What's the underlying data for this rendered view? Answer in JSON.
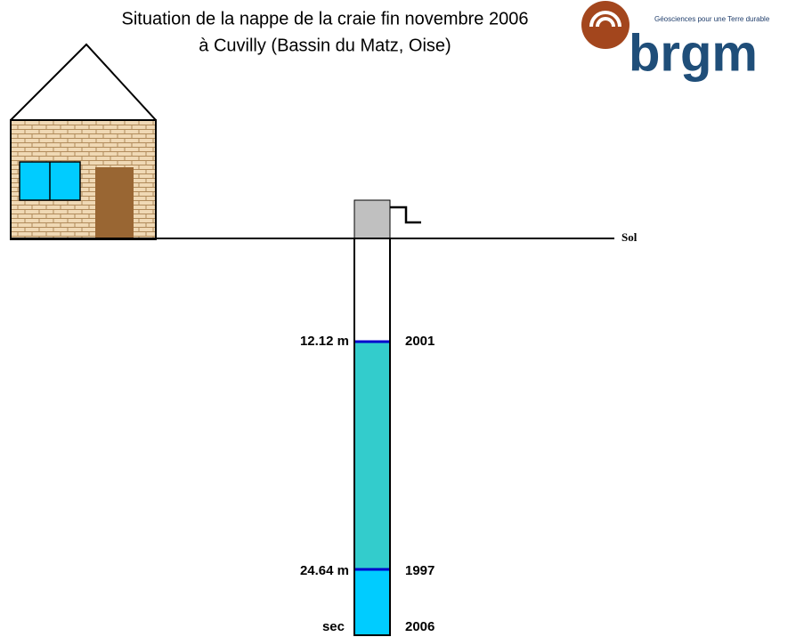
{
  "header": {
    "title": [
      "Situation de la nappe de la craie fin novembre 2006",
      "à Cuvilly (Bassin du Matz, Oise)"
    ]
  },
  "logo": {
    "brand": "brgm",
    "tagline": "Géosciences pour une Terre durable"
  },
  "ground": {
    "label": "Sol"
  },
  "levels": [
    {
      "depth": "12.12 m",
      "year": "2001"
    },
    {
      "depth": "24.64 m",
      "year": "1997"
    },
    {
      "depth": "sec",
      "year": "2006"
    }
  ]
}
